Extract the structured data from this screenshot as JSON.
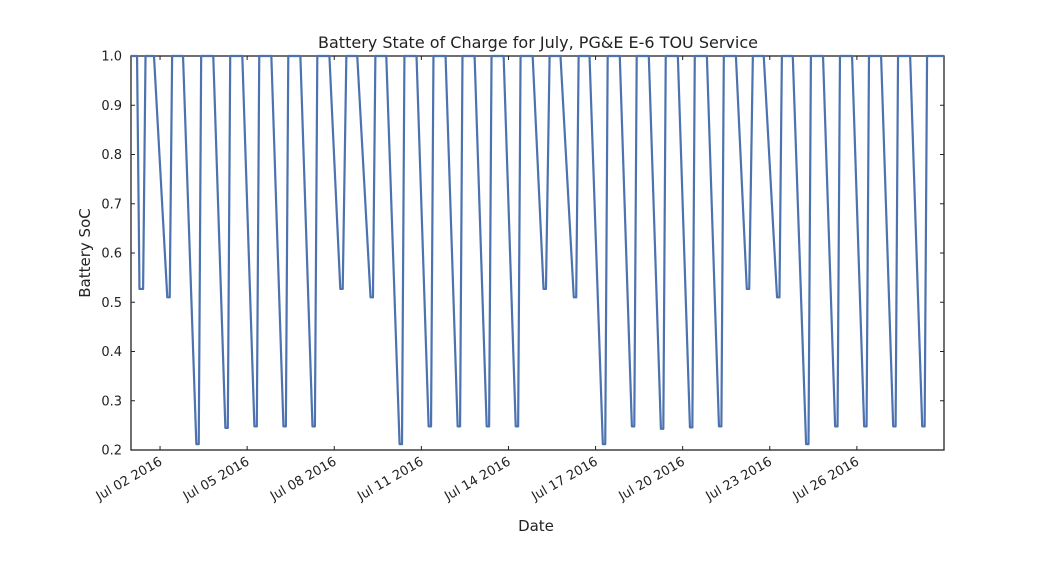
{
  "chart_data": {
    "type": "line",
    "title": "Battery State of Charge for July, PG&E E-6 TOU Service",
    "xlabel": "Date",
    "ylabel": "Battery SoC",
    "ylim": [
      0.2,
      1.0
    ],
    "yticks": [
      "0.2",
      "0.3",
      "0.4",
      "0.5",
      "0.6",
      "0.7",
      "0.8",
      "0.9",
      "1.0"
    ],
    "xlim": [
      "2016-07-01",
      "2016-07-29"
    ],
    "xticks": [
      {
        "date": "2016-07-02",
        "label": "Jul 02 2016"
      },
      {
        "date": "2016-07-05",
        "label": "Jul 05 2016"
      },
      {
        "date": "2016-07-08",
        "label": "Jul 08 2016"
      },
      {
        "date": "2016-07-11",
        "label": "Jul 11 2016"
      },
      {
        "date": "2016-07-14",
        "label": "Jul 14 2016"
      },
      {
        "date": "2016-07-17",
        "label": "Jul 17 2016"
      },
      {
        "date": "2016-07-20",
        "label": "Jul 20 2016"
      },
      {
        "date": "2016-07-23",
        "label": "Jul 23 2016"
      },
      {
        "date": "2016-07-26",
        "label": "Jul 26 2016"
      }
    ],
    "grid": false,
    "line_color": "#4c72b0",
    "series": [
      {
        "name": "",
        "x": [
          "2016-07-01 00:00",
          "2016-07-01 05:00",
          "2016-07-01 07:00",
          "2016-07-01 10:00",
          "2016-07-01 12:00",
          "2016-07-01 19:00",
          "2016-07-02 06:00",
          "2016-07-02 08:00",
          "2016-07-02 10:00",
          "2016-07-02 12:00",
          "2016-07-02 19:00",
          "2016-07-03 06:00",
          "2016-07-03 08:00",
          "2016-07-03 10:00",
          "2016-07-03 12:00",
          "2016-07-03 20:00",
          "2016-07-04 06:00",
          "2016-07-04 08:00",
          "2016-07-04 10:00",
          "2016-07-04 12:00",
          "2016-07-04 20:00",
          "2016-07-05 06:00",
          "2016-07-05 08:00",
          "2016-07-05 10:00",
          "2016-07-05 12:00",
          "2016-07-05 20:00",
          "2016-07-06 06:00",
          "2016-07-06 08:00",
          "2016-07-06 10:00",
          "2016-07-06 12:00",
          "2016-07-06 20:00",
          "2016-07-07 06:00",
          "2016-07-07 08:00",
          "2016-07-07 10:00",
          "2016-07-07 12:00",
          "2016-07-07 20:00",
          "2016-07-08 05:00",
          "2016-07-08 07:00",
          "2016-07-08 10:00",
          "2016-07-08 12:00",
          "2016-07-08 19:00",
          "2016-07-09 06:00",
          "2016-07-09 08:00",
          "2016-07-09 10:00",
          "2016-07-09 12:00",
          "2016-07-09 19:00",
          "2016-07-10 06:00",
          "2016-07-10 08:00",
          "2016-07-10 10:00",
          "2016-07-10 12:00",
          "2016-07-10 20:00",
          "2016-07-11 06:00",
          "2016-07-11 08:00",
          "2016-07-11 10:00",
          "2016-07-11 12:00",
          "2016-07-11 20:00",
          "2016-07-12 06:00",
          "2016-07-12 08:00",
          "2016-07-12 10:00",
          "2016-07-12 12:00",
          "2016-07-12 20:00",
          "2016-07-13 06:00",
          "2016-07-13 08:00",
          "2016-07-13 10:00",
          "2016-07-13 12:00",
          "2016-07-13 20:00",
          "2016-07-14 06:00",
          "2016-07-14 08:00",
          "2016-07-14 10:00",
          "2016-07-14 12:00",
          "2016-07-14 20:00",
          "2016-07-15 05:00",
          "2016-07-15 07:00",
          "2016-07-15 10:00",
          "2016-07-15 12:00",
          "2016-07-15 19:00",
          "2016-07-16 06:00",
          "2016-07-16 08:00",
          "2016-07-16 10:00",
          "2016-07-16 12:00",
          "2016-07-16 19:00",
          "2016-07-17 06:00",
          "2016-07-17 08:00",
          "2016-07-17 10:00",
          "2016-07-17 12:00",
          "2016-07-17 20:00",
          "2016-07-18 06:00",
          "2016-07-18 08:00",
          "2016-07-18 10:00",
          "2016-07-18 12:00",
          "2016-07-18 20:00",
          "2016-07-19 06:00",
          "2016-07-19 08:00",
          "2016-07-19 10:00",
          "2016-07-19 12:00",
          "2016-07-19 20:00",
          "2016-07-20 06:00",
          "2016-07-20 08:00",
          "2016-07-20 10:00",
          "2016-07-20 12:00",
          "2016-07-20 20:00",
          "2016-07-21 06:00",
          "2016-07-21 08:00",
          "2016-07-21 10:00",
          "2016-07-21 12:00",
          "2016-07-21 20:00",
          "2016-07-22 05:00",
          "2016-07-22 07:00",
          "2016-07-22 10:00",
          "2016-07-22 12:00",
          "2016-07-22 19:00",
          "2016-07-23 06:00",
          "2016-07-23 08:00",
          "2016-07-23 10:00",
          "2016-07-23 12:00",
          "2016-07-23 19:00",
          "2016-07-24 06:00",
          "2016-07-24 08:00",
          "2016-07-24 10:00",
          "2016-07-24 12:00",
          "2016-07-24 20:00",
          "2016-07-25 06:00",
          "2016-07-25 08:00",
          "2016-07-25 10:00",
          "2016-07-25 12:00",
          "2016-07-25 20:00",
          "2016-07-26 06:00",
          "2016-07-26 08:00",
          "2016-07-26 10:00",
          "2016-07-26 12:00",
          "2016-07-26 20:00",
          "2016-07-27 06:00",
          "2016-07-27 08:00",
          "2016-07-27 10:00",
          "2016-07-27 12:00",
          "2016-07-27 20:00",
          "2016-07-28 06:00",
          "2016-07-28 08:00",
          "2016-07-28 10:00",
          "2016-07-28 12:00",
          "2016-07-28 21:00",
          "2016-07-29 00:00"
        ],
        "y": [
          1.0,
          1.0,
          0.527,
          0.527,
          1.0,
          1.0,
          0.51,
          0.51,
          1.0,
          1.0,
          1.0,
          0.212,
          0.212,
          1.0,
          1.0,
          1.0,
          0.245,
          0.245,
          1.0,
          1.0,
          1.0,
          0.248,
          0.248,
          1.0,
          1.0,
          1.0,
          0.248,
          0.248,
          1.0,
          1.0,
          1.0,
          0.248,
          0.248,
          1.0,
          1.0,
          1.0,
          0.527,
          0.527,
          1.0,
          1.0,
          1.0,
          0.51,
          0.51,
          1.0,
          1.0,
          1.0,
          0.212,
          0.212,
          1.0,
          1.0,
          1.0,
          0.248,
          0.248,
          1.0,
          1.0,
          1.0,
          0.248,
          0.248,
          1.0,
          1.0,
          1.0,
          0.248,
          0.248,
          1.0,
          1.0,
          1.0,
          0.248,
          0.248,
          1.0,
          1.0,
          1.0,
          0.527,
          0.527,
          1.0,
          1.0,
          1.0,
          0.51,
          0.51,
          1.0,
          1.0,
          1.0,
          0.212,
          0.212,
          1.0,
          1.0,
          1.0,
          0.248,
          0.248,
          1.0,
          1.0,
          1.0,
          0.243,
          0.243,
          1.0,
          1.0,
          1.0,
          0.246,
          0.246,
          1.0,
          1.0,
          1.0,
          0.248,
          0.248,
          1.0,
          1.0,
          1.0,
          0.527,
          0.527,
          1.0,
          1.0,
          1.0,
          0.51,
          0.51,
          1.0,
          1.0,
          1.0,
          0.212,
          0.212,
          1.0,
          1.0,
          1.0,
          0.248,
          0.248,
          1.0,
          1.0,
          1.0,
          0.248,
          0.248,
          1.0,
          1.0,
          1.0,
          0.248,
          0.248,
          1.0,
          1.0,
          1.0,
          0.248,
          0.248,
          1.0,
          1.0,
          1.0,
          1.0
        ]
      }
    ]
  }
}
